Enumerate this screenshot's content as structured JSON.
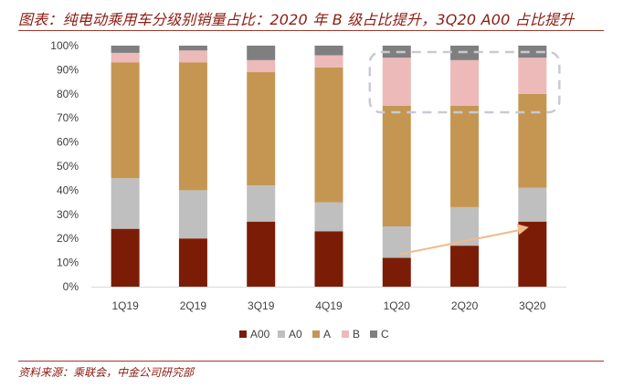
{
  "title": "图表：纯电动乘用车分级别销量占比：2020 年 B 级占比提升，3Q20 A00 占比提升",
  "source": "资料来源：乘联会，中金公司研究部",
  "chart_data": {
    "type": "bar",
    "stacked": true,
    "categories": [
      "1Q19",
      "2Q19",
      "3Q19",
      "4Q19",
      "1Q20",
      "2Q20",
      "3Q20"
    ],
    "y_ticks": [
      "0%",
      "10%",
      "20%",
      "30%",
      "40%",
      "50%",
      "60%",
      "70%",
      "80%",
      "90%",
      "100%"
    ],
    "ylim": [
      0,
      100
    ],
    "series": [
      {
        "name": "A00",
        "color": "#7b1d06",
        "values": [
          24,
          20,
          27,
          23,
          12,
          17,
          27
        ]
      },
      {
        "name": "A0",
        "color": "#bfbfbf",
        "values": [
          21,
          20,
          15,
          12,
          13,
          16,
          14
        ]
      },
      {
        "name": "A",
        "color": "#c59652",
        "values": [
          48,
          53,
          47,
          56,
          50,
          42,
          39
        ]
      },
      {
        "name": "B",
        "color": "#edb9b9",
        "values": [
          4,
          5,
          5,
          5,
          20,
          19,
          15
        ]
      },
      {
        "name": "C",
        "color": "#7f7f7f",
        "values": [
          3,
          2,
          6,
          4,
          5,
          6,
          5
        ]
      }
    ],
    "legend": "bottom",
    "annotations": [
      {
        "type": "dashed-rounded-box",
        "around": "B and C segments of 1Q20–3Q20",
        "color": "#c9c9d6"
      },
      {
        "type": "arrow",
        "from": "1Q20 A00",
        "to": "3Q20 A00",
        "color": "#f2b98a"
      }
    ]
  }
}
